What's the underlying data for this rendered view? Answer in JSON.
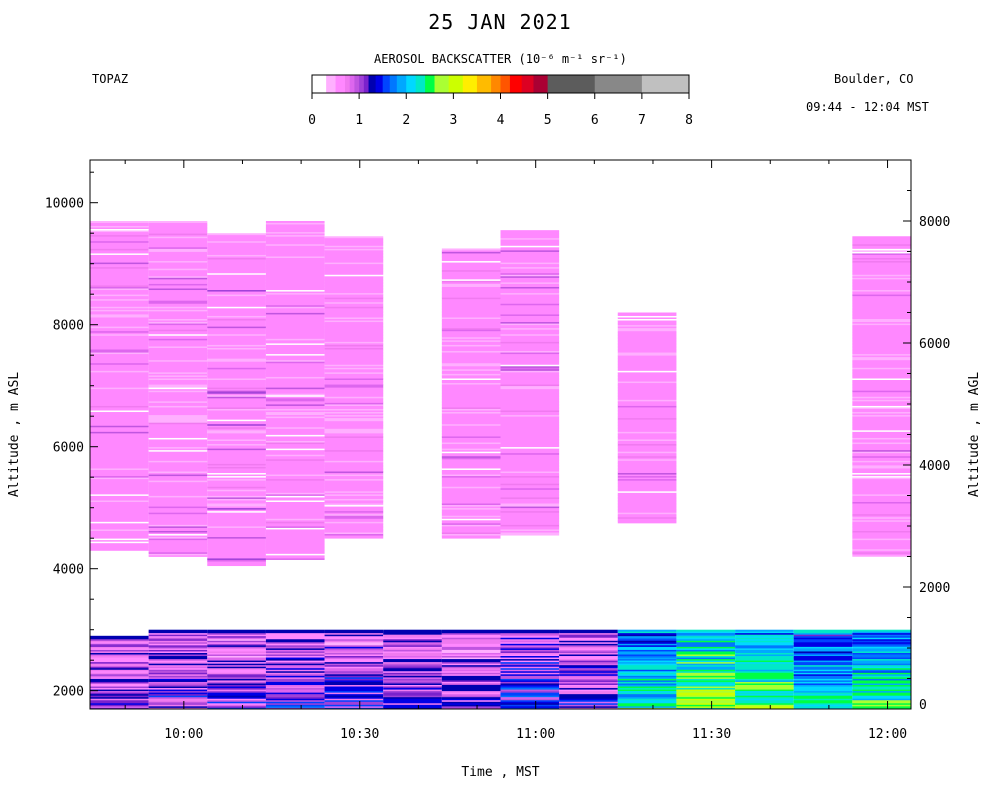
{
  "header": {
    "title": "25 JAN 2021",
    "station": "TOPAZ",
    "location": "Boulder, CO",
    "time_range": "09:44 - 12:04 MST"
  },
  "colorbar": {
    "title": "AEROSOL BACKSCATTER (10⁻⁶ m⁻¹ sr⁻¹)",
    "ticks": [
      0,
      1,
      2,
      3,
      4,
      5,
      6,
      7,
      8
    ],
    "palette": [
      "#ffffff",
      "#ffb0ff",
      "#ff88ff",
      "#f07af0",
      "#dd66ee",
      "#c055e0",
      "#a040d8",
      "#7a22cc",
      "#0000b0",
      "#0000e6",
      "#0044ff",
      "#0077ff",
      "#00a8ff",
      "#00d8ff",
      "#00e8c8",
      "#00ff44",
      "#aaff33",
      "#ccff00",
      "#ffee00",
      "#ffbb00",
      "#ff8800",
      "#ff5500",
      "#ff0000",
      "#dd0022",
      "#aa0033",
      "#5c5c5c",
      "#888888",
      "#c0c0c0"
    ],
    "segment_ends": [
      0.3,
      0.5,
      0.7,
      0.8,
      0.9,
      1.0,
      1.1,
      1.2,
      1.35,
      1.5,
      1.65,
      1.8,
      2.0,
      2.2,
      2.4,
      2.6,
      2.9,
      3.2,
      3.5,
      3.8,
      4.0,
      4.2,
      4.45,
      4.7,
      5.0,
      6.0,
      7.0,
      8.0
    ]
  },
  "chart_data": {
    "type": "heatmap",
    "xlabel": "Time , MST",
    "ylabel_left": "Altitude , m ASL",
    "ylabel_right": "Altitude , m AGL",
    "x_ticks": [
      "10:00",
      "10:30",
      "11:00",
      "11:30",
      "12:00"
    ],
    "x_range": [
      "09:44",
      "12:04"
    ],
    "y_left_ticks": [
      2000,
      4000,
      6000,
      8000,
      10000
    ],
    "y_left_range": [
      1700,
      10700
    ],
    "y_right_ticks": [
      0,
      2000,
      4000,
      6000,
      8000
    ],
    "surface_altitude_m": 1700,
    "profiles": [
      {
        "start": "09:44",
        "end": "09:54",
        "upper": [
          4300,
          9700
        ],
        "upper_value": 0.6,
        "upper_alt": 0.4,
        "lower": [
          1700,
          2900
        ],
        "lower_value": 0.9
      },
      {
        "start": "09:54",
        "end": "10:04",
        "upper": [
          4200,
          9700
        ],
        "upper_value": 0.6,
        "upper_alt": 0.4,
        "lower": [
          1700,
          3000
        ],
        "lower_value": 1.0
      },
      {
        "start": "10:04",
        "end": "10:14",
        "upper": [
          4050,
          9500
        ],
        "upper_value": 0.7,
        "upper_alt": 0.5,
        "lower": [
          1700,
          3000
        ],
        "lower_value": 1.0
      },
      {
        "start": "10:14",
        "end": "10:24",
        "upper": [
          4150,
          9700
        ],
        "upper_value": 0.6,
        "upper_alt": 0.4,
        "lower": [
          1700,
          3000
        ],
        "lower_value": 1.1
      },
      {
        "start": "10:24",
        "end": "10:34",
        "upper": [
          4500,
          9450
        ],
        "upper_value": 0.6,
        "upper_alt": 0.4,
        "lower": [
          1700,
          3000
        ],
        "lower_value": 1.05
      },
      {
        "start": "10:34",
        "end": "10:44",
        "upper": null,
        "upper_value": 0,
        "upper_alt": 0,
        "lower": [
          1700,
          3000
        ],
        "lower_value": 1.0
      },
      {
        "start": "10:44",
        "end": "10:54",
        "upper": [
          4500,
          9250
        ],
        "upper_value": 0.6,
        "upper_alt": 0.4,
        "lower": [
          1700,
          3000
        ],
        "lower_value": 0.9
      },
      {
        "start": "10:54",
        "end": "11:04",
        "upper": [
          4550,
          9550
        ],
        "upper_value": 0.65,
        "upper_alt": 0.4,
        "lower": [
          1700,
          3000
        ],
        "lower_value": 1.2
      },
      {
        "start": "11:04",
        "end": "11:14",
        "upper": null,
        "upper_value": 0,
        "upper_alt": 0,
        "lower": [
          1700,
          3000
        ],
        "lower_value": 1.0
      },
      {
        "start": "11:14",
        "end": "11:24",
        "upper": [
          4750,
          8200
        ],
        "upper_value": 0.6,
        "upper_alt": 0.4,
        "lower": [
          1700,
          3000
        ],
        "lower_value": 2.0
      },
      {
        "start": "11:24",
        "end": "11:34",
        "upper": null,
        "upper_value": 0,
        "upper_alt": 0,
        "lower": [
          1700,
          3000
        ],
        "lower_value": 2.4
      },
      {
        "start": "11:34",
        "end": "11:44",
        "upper": null,
        "upper_value": 0,
        "upper_alt": 0,
        "lower": [
          1700,
          3000
        ],
        "lower_value": 2.3
      },
      {
        "start": "11:44",
        "end": "11:54",
        "upper": null,
        "upper_value": 0,
        "upper_alt": 0,
        "lower": [
          1700,
          3000
        ],
        "lower_value": 1.9
      },
      {
        "start": "11:54",
        "end": "12:04",
        "upper": [
          4200,
          9450
        ],
        "upper_value": 0.6,
        "upper_alt": 0.4,
        "lower": [
          1700,
          3000
        ],
        "lower_value": 2.1
      }
    ]
  }
}
